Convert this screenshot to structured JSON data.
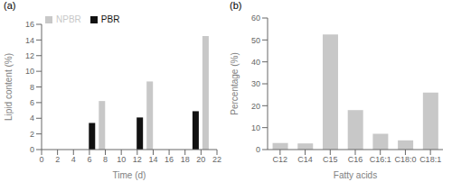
{
  "chart_data": [
    {
      "type": "bar",
      "title": "(a)",
      "x": [
        7,
        13,
        20
      ],
      "series": [
        {
          "name": "PBR",
          "color": "#111111",
          "values": [
            3.4,
            4.1,
            4.9
          ]
        },
        {
          "name": "NPBR",
          "color": "#c8c8c8",
          "values": [
            6.2,
            8.7,
            14.5
          ]
        }
      ],
      "xlabel": "Time (d)",
      "ylabel": "Lipid content (%)",
      "xlim": [
        0,
        22
      ],
      "ylim": [
        0,
        16
      ],
      "xticks": [
        0,
        2,
        4,
        6,
        8,
        10,
        12,
        14,
        16,
        18,
        20,
        22
      ],
      "yticks": [
        0,
        2,
        4,
        6,
        8,
        10,
        12,
        14,
        16
      ],
      "legend": "upper left",
      "grid": false
    },
    {
      "type": "bar",
      "title": "(b)",
      "categories": [
        "C12",
        "C14",
        "C15",
        "C16",
        "C16:1",
        "C18:0",
        "C18:1"
      ],
      "values": [
        3.0,
        2.8,
        52.5,
        18.0,
        7.2,
        4.2,
        26.0
      ],
      "color": "#c8c8c8",
      "xlabel": "Fatty acids",
      "ylabel": "Percentage (%)",
      "ylim": [
        0,
        60
      ],
      "yticks": [
        0,
        10,
        20,
        30,
        40,
        50,
        60
      ],
      "grid": false
    }
  ]
}
